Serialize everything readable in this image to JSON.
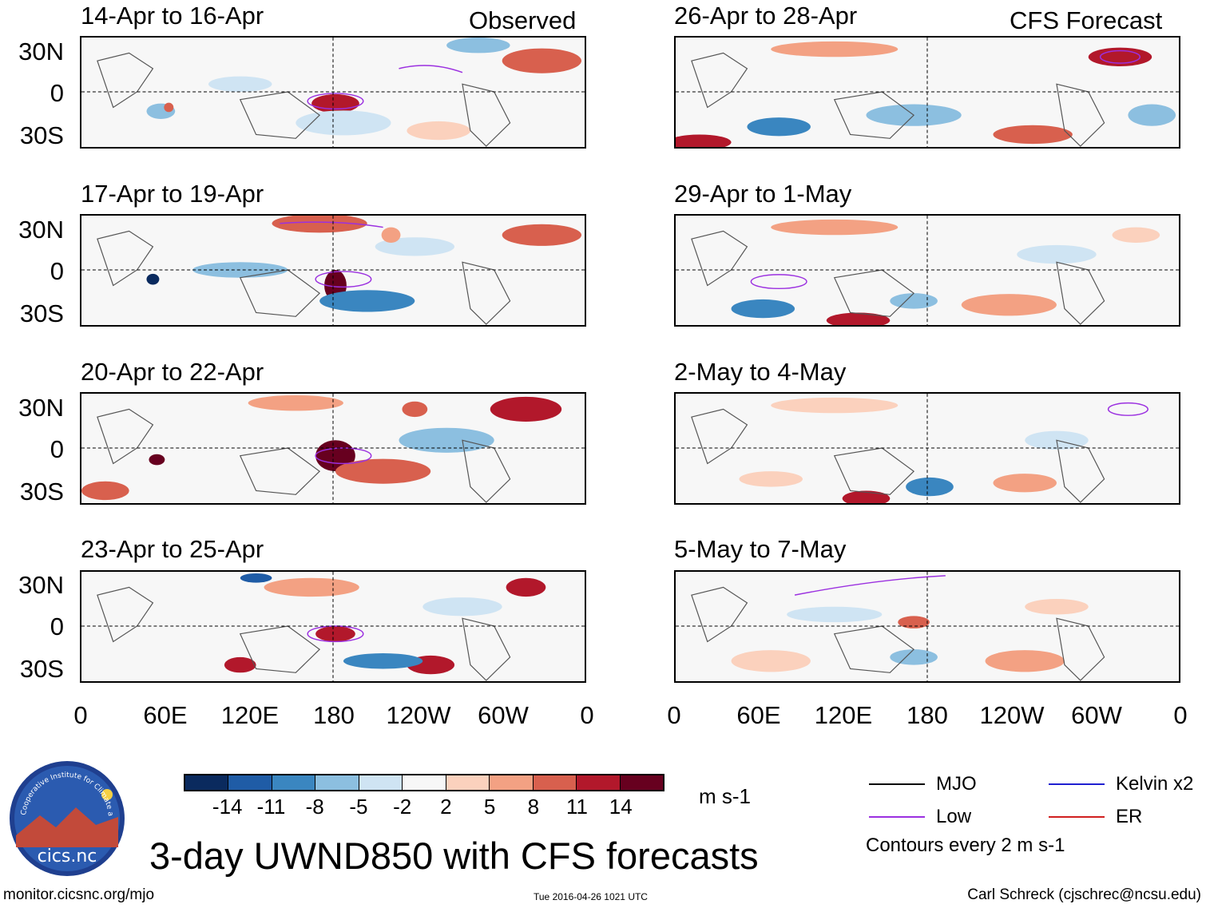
{
  "columns": {
    "left_label": "Observed",
    "right_label": "CFS Forecast"
  },
  "panels_left": [
    {
      "title": "14-Apr to 16-Apr"
    },
    {
      "title": "17-Apr to 19-Apr"
    },
    {
      "title": "20-Apr to 22-Apr"
    },
    {
      "title": "23-Apr to 25-Apr"
    }
  ],
  "panels_right": [
    {
      "title": "26-Apr to 28-Apr"
    },
    {
      "title": "29-Apr to 1-May"
    },
    {
      "title": "2-May to 4-May"
    },
    {
      "title": "5-May to 7-May"
    }
  ],
  "lat_labels": [
    "30N",
    "0",
    "30S"
  ],
  "lon_labels": [
    "0",
    "60E",
    "120E",
    "180",
    "120W",
    "60W",
    "0"
  ],
  "colorbar": {
    "colors": [
      "#0a2a5e",
      "#1f5ca6",
      "#3a86c0",
      "#8cbfe0",
      "#cfe4f3",
      "#f7f7f7",
      "#fbd1bd",
      "#f3a183",
      "#d8604e",
      "#b2182b",
      "#67001f"
    ],
    "ticks": [
      "-14",
      "-11",
      "-8",
      "-5",
      "-2",
      "2",
      "5",
      "8",
      "11",
      "14"
    ],
    "units": "m s-1"
  },
  "legend": {
    "mjo": {
      "label": "MJO",
      "color": "#000000"
    },
    "low": {
      "label": "Low",
      "color": "#9b30e0"
    },
    "kelvin": {
      "label": "Kelvin x2",
      "color": "#1f1fd0"
    },
    "er": {
      "label": "ER",
      "color": "#d01f1f"
    },
    "contours": "Contours every 2 m s-1"
  },
  "title": "3-day UWND850 with CFS forecasts",
  "footer": {
    "url": "monitor.cicsnc.org/mjo",
    "timestamp": "Tue 2016-04-26 1021 UTC",
    "author": "Carl Schreck (cjschrec@ncsu.edu)"
  },
  "logo": {
    "arc_text": "Cooperative Institute for Climate and Satellites",
    "name": "cics.nc"
  }
}
